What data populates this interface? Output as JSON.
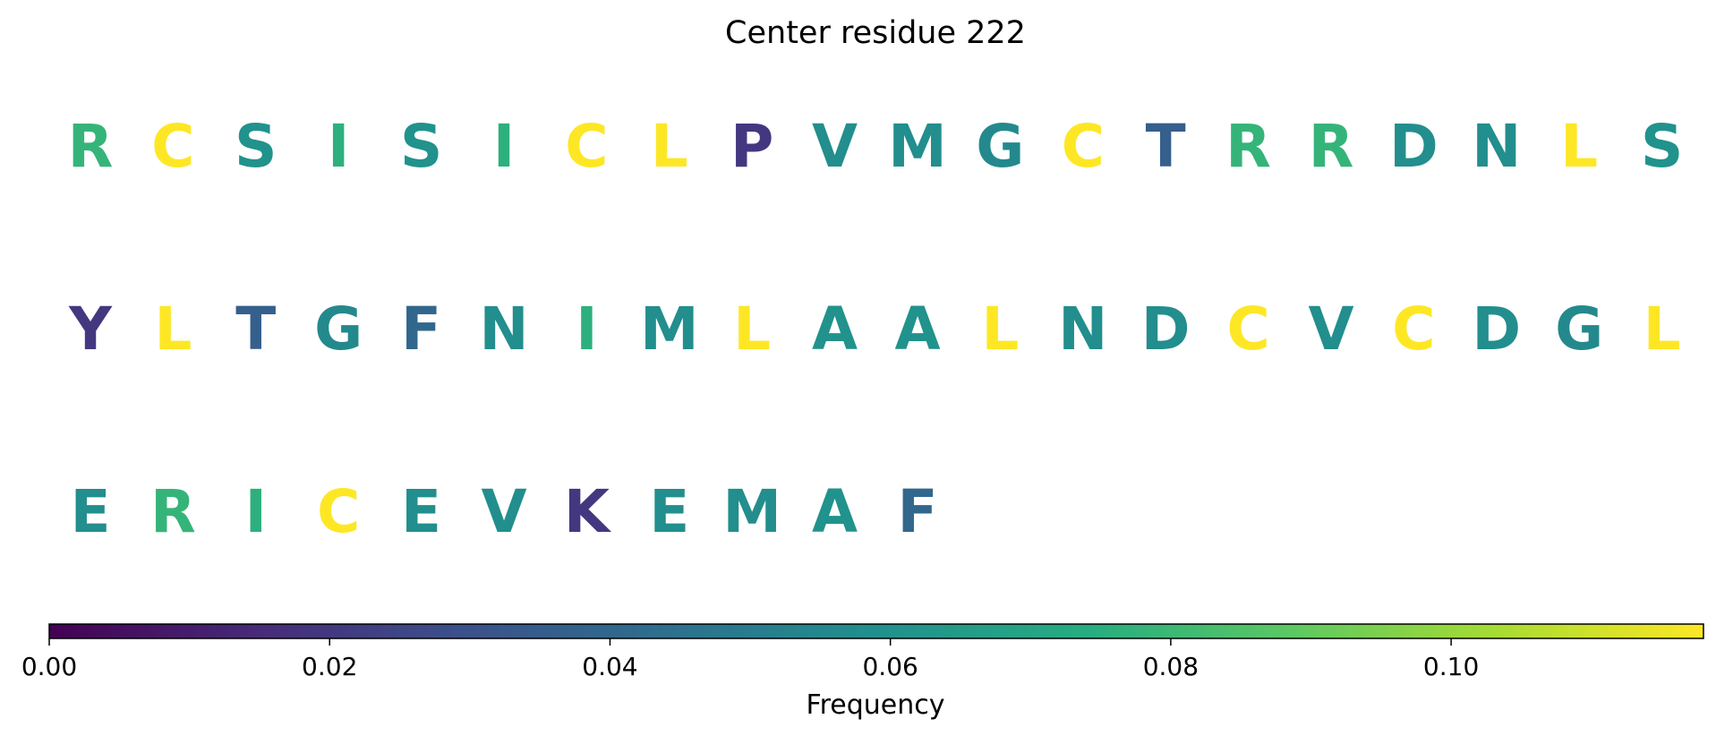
{
  "chart_data": {
    "type": "heatmap",
    "title": "Center residue 222",
    "colormap": "viridis",
    "colorbar": {
      "label": "Frequency",
      "range": [
        0,
        0.118
      ],
      "ticks": [
        0.0,
        0.02,
        0.04,
        0.06,
        0.08,
        0.1
      ],
      "tick_labels": [
        "0.00",
        "0.02",
        "0.04",
        "0.06",
        "0.08",
        "0.10"
      ],
      "orientation": "horizontal",
      "placement": "bottom"
    },
    "grid": false,
    "rows": [
      [
        {
          "residue": "R",
          "frequency": 0.078
        },
        {
          "residue": "C",
          "frequency": 0.118
        },
        {
          "residue": "S",
          "frequency": 0.06
        },
        {
          "residue": "I",
          "frequency": 0.076
        },
        {
          "residue": "S",
          "frequency": 0.06
        },
        {
          "residue": "I",
          "frequency": 0.076
        },
        {
          "residue": "C",
          "frequency": 0.118
        },
        {
          "residue": "L",
          "frequency": 0.118
        },
        {
          "residue": "P",
          "frequency": 0.02
        },
        {
          "residue": "V",
          "frequency": 0.058
        },
        {
          "residue": "M",
          "frequency": 0.058
        },
        {
          "residue": "G",
          "frequency": 0.056
        },
        {
          "residue": "C",
          "frequency": 0.118
        },
        {
          "residue": "T",
          "frequency": 0.036
        },
        {
          "residue": "R",
          "frequency": 0.078
        },
        {
          "residue": "R",
          "frequency": 0.078
        },
        {
          "residue": "D",
          "frequency": 0.058
        },
        {
          "residue": "N",
          "frequency": 0.058
        },
        {
          "residue": "L",
          "frequency": 0.118
        },
        {
          "residue": "S",
          "frequency": 0.06
        }
      ],
      [
        {
          "residue": "Y",
          "frequency": 0.02
        },
        {
          "residue": "L",
          "frequency": 0.118
        },
        {
          "residue": "T",
          "frequency": 0.036
        },
        {
          "residue": "G",
          "frequency": 0.056
        },
        {
          "residue": "F",
          "frequency": 0.04
        },
        {
          "residue": "N",
          "frequency": 0.058
        },
        {
          "residue": "I",
          "frequency": 0.076
        },
        {
          "residue": "M",
          "frequency": 0.058
        },
        {
          "residue": "L",
          "frequency": 0.118
        },
        {
          "residue": "A",
          "frequency": 0.06
        },
        {
          "residue": "A",
          "frequency": 0.06
        },
        {
          "residue": "L",
          "frequency": 0.118
        },
        {
          "residue": "N",
          "frequency": 0.058
        },
        {
          "residue": "D",
          "frequency": 0.058
        },
        {
          "residue": "C",
          "frequency": 0.118
        },
        {
          "residue": "V",
          "frequency": 0.058
        },
        {
          "residue": "C",
          "frequency": 0.118
        },
        {
          "residue": "D",
          "frequency": 0.058
        },
        {
          "residue": "G",
          "frequency": 0.056
        },
        {
          "residue": "L",
          "frequency": 0.118
        }
      ],
      [
        {
          "residue": "E",
          "frequency": 0.058
        },
        {
          "residue": "R",
          "frequency": 0.078
        },
        {
          "residue": "I",
          "frequency": 0.076
        },
        {
          "residue": "C",
          "frequency": 0.118
        },
        {
          "residue": "E",
          "frequency": 0.058
        },
        {
          "residue": "V",
          "frequency": 0.058
        },
        {
          "residue": "K",
          "frequency": 0.02
        },
        {
          "residue": "E",
          "frequency": 0.058
        },
        {
          "residue": "M",
          "frequency": 0.058
        },
        {
          "residue": "A",
          "frequency": 0.06
        },
        {
          "residue": "F",
          "frequency": 0.04
        }
      ]
    ]
  }
}
